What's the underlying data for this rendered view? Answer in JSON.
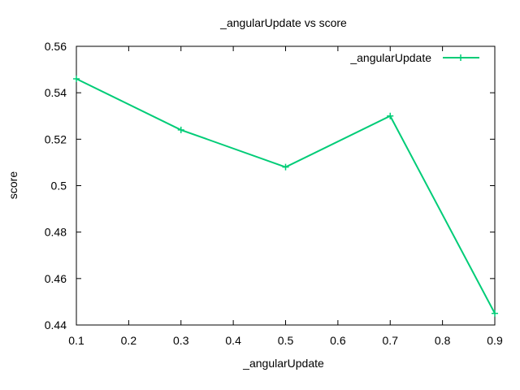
{
  "chart_data": {
    "type": "line",
    "title": "_angularUpdate vs score",
    "xlabel": "_angularUpdate",
    "ylabel": "score",
    "xlim": [
      0.1,
      0.9
    ],
    "ylim": [
      0.44,
      0.56
    ],
    "xticks": [
      "0.1",
      "0.2",
      "0.3",
      "0.4",
      "0.5",
      "0.6",
      "0.7",
      "0.8",
      "0.9"
    ],
    "yticks": [
      "0.44",
      "0.46",
      "0.48",
      "0.5",
      "0.52",
      "0.54",
      "0.56"
    ],
    "grid": false,
    "legend_position": "top-right",
    "series": [
      {
        "name": "_angularUpdate",
        "color": "#00cc77",
        "x": [
          0.1,
          0.3,
          0.5,
          0.7,
          0.9
        ],
        "y": [
          0.546,
          0.524,
          0.508,
          0.53,
          0.445
        ]
      }
    ]
  }
}
